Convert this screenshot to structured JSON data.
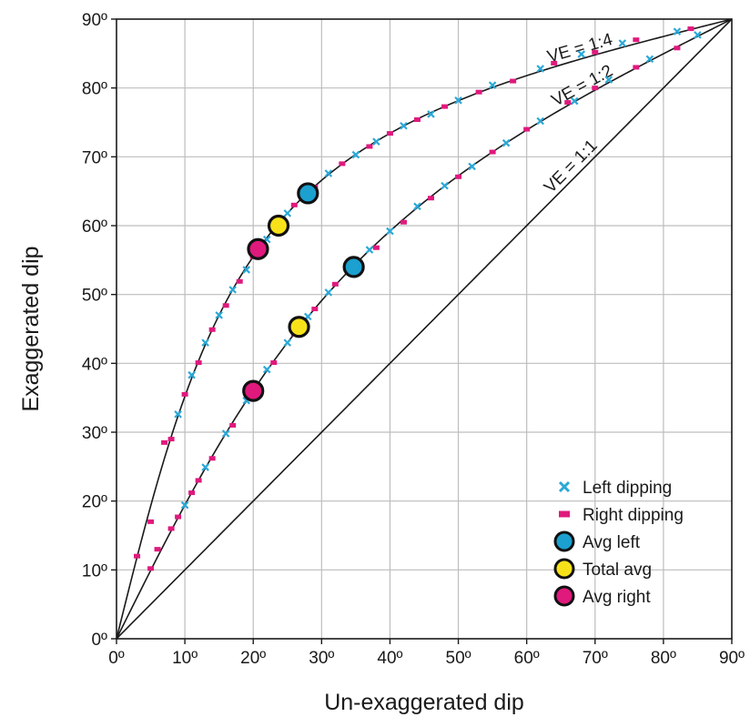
{
  "chart_data": {
    "type": "scatter",
    "title": "",
    "xlabel": "Un-exaggerated dip",
    "ylabel": "Exaggerated dip",
    "xlim": [
      0,
      90
    ],
    "ylim": [
      0,
      90
    ],
    "grid": true,
    "x_ticks": [
      "0º",
      "10º",
      "20º",
      "30º",
      "40º",
      "50º",
      "60º",
      "70º",
      "80º",
      "90º"
    ],
    "y_ticks": [
      "0º",
      "10º",
      "20º",
      "30º",
      "40º",
      "50º",
      "60º",
      "70º",
      "80º",
      "90º"
    ],
    "colors": {
      "left": "#2aa8d8",
      "right": "#e0197d",
      "avg_left": "#1ba0cf",
      "total_avg": "#f7e21a",
      "avg_right": "#e0197d",
      "line": "#1a1a1a",
      "grid": "#bdbdbd"
    },
    "reference_curves": [
      {
        "label": "VE = 1:4",
        "ve": 4
      },
      {
        "label": "VE = 1:2",
        "ve": 2
      },
      {
        "label": "VE = 1:1",
        "ve": 1
      }
    ],
    "series": [
      {
        "name": "Left dipping",
        "marker": "x",
        "points": [
          [
            9,
            32.6
          ],
          [
            11,
            38.3
          ],
          [
            13,
            43
          ],
          [
            15,
            47
          ],
          [
            17,
            50.7
          ],
          [
            19,
            53.6
          ],
          [
            22,
            58
          ],
          [
            25,
            61.8
          ],
          [
            28,
            65
          ],
          [
            31,
            67.6
          ],
          [
            35,
            70.3
          ],
          [
            38,
            72.2
          ],
          [
            42,
            74.5
          ],
          [
            46,
            76.2
          ],
          [
            50,
            78.2
          ],
          [
            55,
            80.4
          ],
          [
            62,
            82.8
          ],
          [
            68,
            84.9
          ],
          [
            74,
            86.5
          ],
          [
            82,
            88.2
          ],
          [
            10,
            19.4
          ],
          [
            13,
            24.9
          ],
          [
            16,
            29.8
          ],
          [
            19,
            34.6
          ],
          [
            22,
            39.1
          ],
          [
            25,
            43
          ],
          [
            28,
            46.8
          ],
          [
            31,
            50.3
          ],
          [
            34,
            53.4
          ],
          [
            37,
            56.5
          ],
          [
            40,
            59.2
          ],
          [
            44,
            62.8
          ],
          [
            48,
            65.8
          ],
          [
            52,
            68.6
          ],
          [
            57,
            72
          ],
          [
            62,
            75.2
          ],
          [
            67,
            78.1
          ],
          [
            72,
            81.2
          ],
          [
            78,
            84.2
          ],
          [
            85,
            87.7
          ]
        ]
      },
      {
        "name": "Right dipping",
        "marker": "square",
        "points": [
          [
            3,
            12
          ],
          [
            5,
            17
          ],
          [
            7,
            28.5
          ],
          [
            8,
            29
          ],
          [
            10,
            35.5
          ],
          [
            12,
            40.1
          ],
          [
            14,
            44.9
          ],
          [
            16,
            48.4
          ],
          [
            18,
            51.9
          ],
          [
            20,
            55.5
          ],
          [
            23,
            59.4
          ],
          [
            26,
            63
          ],
          [
            29,
            65.6
          ],
          [
            33,
            69
          ],
          [
            37,
            71.5
          ],
          [
            40,
            73.4
          ],
          [
            44,
            75.4
          ],
          [
            48,
            77.3
          ],
          [
            53,
            79.4
          ],
          [
            58,
            81
          ],
          [
            64,
            83.6
          ],
          [
            70,
            85.2
          ],
          [
            76,
            87
          ],
          [
            84,
            88.6
          ],
          [
            5,
            10.2
          ],
          [
            6,
            13
          ],
          [
            8,
            16
          ],
          [
            9,
            17.7
          ],
          [
            11,
            21.2
          ],
          [
            12,
            23
          ],
          [
            14,
            26.2
          ],
          [
            17,
            31
          ],
          [
            20,
            36
          ],
          [
            23,
            40.1
          ],
          [
            26,
            44.3
          ],
          [
            29,
            47.9
          ],
          [
            32,
            51.5
          ],
          [
            35,
            54.2
          ],
          [
            38,
            56.8
          ],
          [
            42,
            60.5
          ],
          [
            46,
            64
          ],
          [
            50,
            67.1
          ],
          [
            55,
            70.7
          ],
          [
            60,
            74
          ],
          [
            66,
            77.9
          ],
          [
            70,
            80
          ],
          [
            76,
            83
          ],
          [
            82,
            85.8
          ]
        ]
      }
    ],
    "averages": [
      {
        "name": "Avg left",
        "points": [
          [
            28,
            64.7
          ],
          [
            34.7,
            54
          ]
        ]
      },
      {
        "name": "Total avg",
        "points": [
          [
            23.7,
            60
          ],
          [
            26.7,
            45.3
          ]
        ]
      },
      {
        "name": "Avg right",
        "points": [
          [
            20.7,
            56.6
          ],
          [
            20,
            36
          ]
        ]
      }
    ],
    "legend": {
      "position": "bottom-right",
      "items": [
        {
          "label": "Left dipping",
          "marker": "x"
        },
        {
          "label": "Right dipping",
          "marker": "square"
        },
        {
          "label": "Avg left",
          "marker": "circle-blue"
        },
        {
          "label": "Total avg",
          "marker": "circle-yellow"
        },
        {
          "label": "Avg right",
          "marker": "circle-magenta"
        }
      ]
    }
  }
}
